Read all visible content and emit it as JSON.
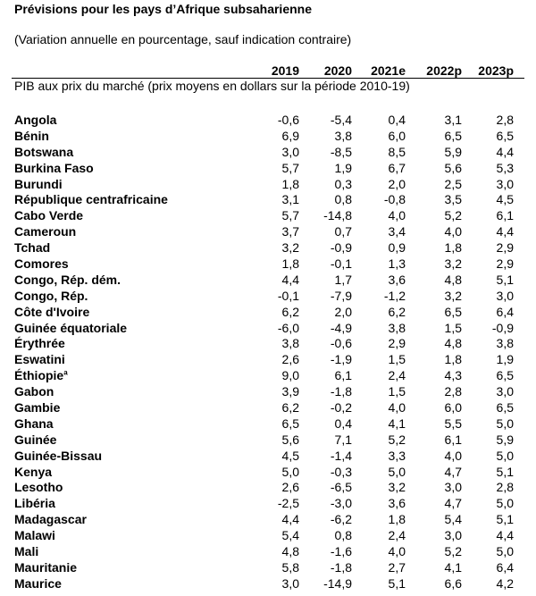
{
  "title": "Prévisions pour les pays d’Afrique subsaharienne",
  "subtitle": "(Variation annuelle en pourcentage, sauf indication contraire)",
  "columns": [
    "2019",
    "2020",
    "2021e",
    "2022p",
    "2023p"
  ],
  "section_label": "PIB aux prix du marché (prix moyens en dollars sur la période 2010-19)",
  "rows": [
    {
      "name": "Angola",
      "sup": "",
      "values": [
        "-0,6",
        "-5,4",
        "0,4",
        "3,1",
        "2,8"
      ]
    },
    {
      "name": "Bénin",
      "sup": "",
      "values": [
        "6,9",
        "3,8",
        "6,0",
        "6,5",
        "6,5"
      ]
    },
    {
      "name": "Botswana",
      "sup": "",
      "values": [
        "3,0",
        "-8,5",
        "8,5",
        "5,9",
        "4,4"
      ]
    },
    {
      "name": "Burkina Faso",
      "sup": "",
      "values": [
        "5,7",
        "1,9",
        "6,7",
        "5,6",
        "5,3"
      ]
    },
    {
      "name": "Burundi",
      "sup": "",
      "values": [
        "1,8",
        "0,3",
        "2,0",
        "2,5",
        "3,0"
      ]
    },
    {
      "name": "République centrafricaine",
      "sup": "",
      "values": [
        "3,1",
        "0,8",
        "-0,8",
        "3,5",
        "4,5"
      ]
    },
    {
      "name": "Cabo Verde",
      "sup": "",
      "values": [
        "5,7",
        "-14,8",
        "4,0",
        "5,2",
        "6,1"
      ]
    },
    {
      "name": "Cameroun",
      "sup": "",
      "values": [
        "3,7",
        "0,7",
        "3,4",
        "4,0",
        "4,4"
      ]
    },
    {
      "name": "Tchad",
      "sup": "",
      "values": [
        "3,2",
        "-0,9",
        "0,9",
        "1,8",
        "2,9"
      ]
    },
    {
      "name": "Comores",
      "sup": "",
      "values": [
        "1,8",
        "-0,1",
        "1,3",
        "3,2",
        "2,9"
      ]
    },
    {
      "name": "Congo, Rép. dém.",
      "sup": "",
      "values": [
        "4,4",
        "1,7",
        "3,6",
        "4,8",
        "5,1"
      ]
    },
    {
      "name": "Congo, Rép.",
      "sup": "",
      "values": [
        "-0,1",
        "-7,9",
        "-1,2",
        "3,2",
        "3,0"
      ]
    },
    {
      "name": "Côte d'Ivoire",
      "sup": "",
      "values": [
        "6,2",
        "2,0",
        "6,2",
        "6,5",
        "6,4"
      ]
    },
    {
      "name": "Guinée équatoriale",
      "sup": "",
      "values": [
        "-6,0",
        "-4,9",
        "3,8",
        "1,5",
        "-0,9"
      ]
    },
    {
      "name": "Érythrée",
      "sup": "",
      "values": [
        "3,8",
        "-0,6",
        "2,9",
        "4,8",
        "3,8"
      ]
    },
    {
      "name": "Eswatini",
      "sup": "",
      "values": [
        "2,6",
        "-1,9",
        "1,5",
        "1,8",
        "1,9"
      ]
    },
    {
      "name": "Éthiopie",
      "sup": "a",
      "values": [
        "9,0",
        "6,1",
        "2,4",
        "4,3",
        "6,5"
      ]
    },
    {
      "name": "Gabon",
      "sup": "",
      "values": [
        "3,9",
        "-1,8",
        "1,5",
        "2,8",
        "3,0"
      ]
    },
    {
      "name": "Gambie",
      "sup": "",
      "values": [
        "6,2",
        "-0,2",
        "4,0",
        "6,0",
        "6,5"
      ]
    },
    {
      "name": "Ghana",
      "sup": "",
      "values": [
        "6,5",
        "0,4",
        "4,1",
        "5,5",
        "5,0"
      ]
    },
    {
      "name": "Guinée",
      "sup": "",
      "values": [
        "5,6",
        "7,1",
        "5,2",
        "6,1",
        "5,9"
      ]
    },
    {
      "name": "Guinée-Bissau",
      "sup": "",
      "values": [
        "4,5",
        "-1,4",
        "3,3",
        "4,0",
        "5,0"
      ]
    },
    {
      "name": "Kenya",
      "sup": "",
      "values": [
        "5,0",
        "-0,3",
        "5,0",
        "4,7",
        "5,1"
      ]
    },
    {
      "name": "Lesotho",
      "sup": "",
      "values": [
        "2,6",
        "-6,5",
        "3,2",
        "3,0",
        "2,8"
      ]
    },
    {
      "name": "Libéria",
      "sup": "",
      "values": [
        "-2,5",
        "-3,0",
        "3,6",
        "4,7",
        "5,0"
      ]
    },
    {
      "name": "Madagascar",
      "sup": "",
      "values": [
        "4,4",
        "-6,2",
        "1,8",
        "5,4",
        "5,1"
      ]
    },
    {
      "name": "Malawi",
      "sup": "",
      "values": [
        "5,4",
        "0,8",
        "2,4",
        "3,0",
        "4,4"
      ]
    },
    {
      "name": "Mali",
      "sup": "",
      "values": [
        "4,8",
        "-1,6",
        "4,0",
        "5,2",
        "5,0"
      ]
    },
    {
      "name": "Mauritanie",
      "sup": "",
      "values": [
        "5,8",
        "-1,8",
        "2,7",
        "4,1",
        "6,4"
      ]
    },
    {
      "name": "Maurice",
      "sup": "",
      "values": [
        "3,0",
        "-14,9",
        "5,1",
        "6,6",
        "4,2"
      ]
    }
  ]
}
